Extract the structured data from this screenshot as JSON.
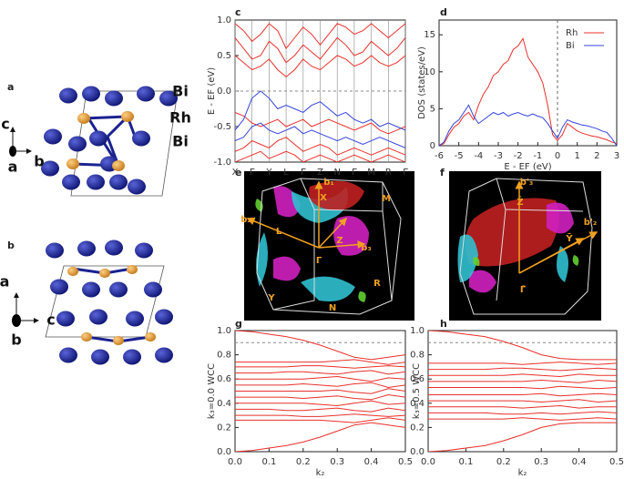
{
  "panel_labels": [
    "a",
    "b",
    "c",
    "d",
    "e",
    "f",
    "g",
    "h"
  ],
  "structures": [
    {
      "labels": [
        "Bi",
        "Rh",
        "Bi"
      ],
      "axes": [
        "c",
        "a",
        "b"
      ]
    },
    {
      "labels": [],
      "axes": [
        "a",
        "b",
        "c"
      ]
    }
  ],
  "fermi_surfaces": [
    {
      "labels": [
        "b₁",
        "b₂",
        "b₃",
        "X",
        "M",
        "L",
        "Z",
        "Γ",
        "R",
        "Y",
        "N"
      ]
    },
    {
      "labels": [
        "b'₃",
        "Z̄",
        "b'₂",
        "Ȳ",
        "Γ̄"
      ]
    }
  ],
  "chart_data": [
    {
      "type": "line",
      "y_label": "E - EF (eV)",
      "x": [
        0,
        0.5,
        1,
        1.5,
        2,
        2.5,
        3,
        3.5,
        4,
        4.5,
        5,
        5.5,
        6,
        6.5,
        7,
        7.5,
        8,
        8.5,
        9,
        9.5,
        10
      ],
      "xlim": [
        0,
        10
      ],
      "xticks": [
        {
          "value": 0,
          "label": "X"
        },
        {
          "value": 1,
          "label": "Γ"
        },
        {
          "value": 2,
          "label": "Y"
        },
        {
          "value": 3,
          "label": "L"
        },
        {
          "value": 4,
          "label": "Γ"
        },
        {
          "value": 5,
          "label": "Z"
        },
        {
          "value": 6,
          "label": "N"
        },
        {
          "value": 7,
          "label": "Γ"
        },
        {
          "value": 8,
          "label": "M"
        },
        {
          "value": 9,
          "label": "R"
        },
        {
          "value": 10,
          "label": "Γ"
        }
      ],
      "xgrid": true,
      "ylim": [
        -1.0,
        1.0
      ],
      "yticks": [
        {
          "value": -1,
          "label": "-1.0"
        },
        {
          "value": -0.5,
          "label": "-0.5"
        },
        {
          "value": 0,
          "label": "0.0"
        },
        {
          "value": 0.5,
          "label": "0.5"
        },
        {
          "value": 1,
          "label": "1.0"
        }
      ],
      "reference_y": [
        0
      ],
      "series": [
        {
          "color": "#e8302a",
          "values": [
            0.95,
            0.85,
            0.7,
            0.8,
            0.95,
            0.85,
            0.6,
            0.75,
            0.9,
            0.8,
            0.65,
            0.8,
            0.95,
            0.9,
            0.8,
            0.85,
            0.95,
            0.85,
            0.75,
            0.85,
            0.95
          ]
        },
        {
          "color": "#e8302a",
          "values": [
            0.75,
            0.6,
            0.45,
            0.5,
            0.7,
            0.6,
            0.4,
            0.5,
            0.65,
            0.55,
            0.45,
            0.6,
            0.75,
            0.65,
            0.5,
            0.55,
            0.7,
            0.6,
            0.5,
            0.6,
            0.75
          ]
        },
        {
          "color": "#e8302a",
          "values": [
            0.5,
            0.4,
            0.3,
            0.35,
            0.45,
            0.3,
            0.2,
            0.3,
            0.45,
            0.35,
            0.3,
            0.4,
            0.5,
            0.45,
            0.35,
            0.4,
            0.5,
            0.4,
            0.35,
            0.4,
            0.5
          ]
        },
        {
          "color": "#e8302a",
          "values": [
            -0.3,
            -0.35,
            -0.45,
            -0.5,
            -0.45,
            -0.4,
            -0.5,
            -0.45,
            -0.4,
            -0.5,
            -0.45,
            -0.4,
            -0.45,
            -0.5,
            -0.55,
            -0.5,
            -0.45,
            -0.55,
            -0.6,
            -0.55,
            -0.5
          ]
        },
        {
          "color": "#e8302a",
          "values": [
            -0.85,
            -0.8,
            -0.7,
            -0.75,
            -0.8,
            -0.7,
            -0.65,
            -0.75,
            -0.85,
            -0.8,
            -0.75,
            -0.8,
            -0.9,
            -0.85,
            -0.8,
            -0.85,
            -0.9,
            -0.85,
            -0.8,
            -0.85,
            -0.9
          ]
        },
        {
          "color": "#e8302a",
          "values": [
            -1.0,
            -0.95,
            -0.9,
            -0.85,
            -0.95,
            -0.9,
            -0.85,
            -0.9,
            -1.0,
            -0.95,
            -0.9,
            -0.95,
            -1.0,
            -0.95,
            -0.9,
            -0.95,
            -1.0,
            -0.95,
            -0.9,
            -0.95,
            -1.0
          ]
        },
        {
          "color": "#3344dd",
          "values": [
            -0.55,
            -0.4,
            -0.1,
            0.0,
            -0.1,
            -0.25,
            -0.2,
            -0.25,
            -0.3,
            -0.2,
            -0.15,
            -0.25,
            -0.35,
            -0.3,
            -0.4,
            -0.45,
            -0.4,
            -0.5,
            -0.45,
            -0.5,
            -0.55
          ]
        },
        {
          "color": "#3344dd",
          "values": [
            -0.7,
            -0.65,
            -0.5,
            -0.45,
            -0.55,
            -0.6,
            -0.55,
            -0.5,
            -0.6,
            -0.55,
            -0.6,
            -0.65,
            -0.7,
            -0.65,
            -0.7,
            -0.75,
            -0.7,
            -0.65,
            -0.7,
            -0.75,
            -0.8
          ]
        }
      ]
    },
    {
      "type": "line",
      "x_label": "E - EF (eV)",
      "y_label": "DOS (states/eV)",
      "legend": "top-right",
      "x": [
        -6,
        -5.75,
        -5.5,
        -5.25,
        -5,
        -4.75,
        -4.5,
        -4.25,
        -4,
        -3.75,
        -3.5,
        -3.25,
        -3,
        -2.75,
        -2.5,
        -2.25,
        -2,
        -1.75,
        -1.5,
        -1.25,
        -1,
        -0.75,
        -0.5,
        -0.25,
        0,
        0.25,
        0.5,
        0.75,
        1,
        1.25,
        1.5,
        1.75,
        2,
        2.25,
        2.5,
        2.75,
        3
      ],
      "xlim": [
        -6,
        3
      ],
      "xticks": [
        -6,
        -5,
        -4,
        -3,
        -2,
        -1,
        0,
        1,
        2,
        3
      ],
      "ylim": [
        0,
        17
      ],
      "yticks": [
        0,
        5,
        10,
        15
      ],
      "reference_x": [
        0
      ],
      "series": [
        {
          "name": "Rh",
          "color": "#e8302a",
          "values": [
            0,
            0.3,
            1.5,
            2.5,
            3,
            4,
            4.5,
            3.5,
            5.5,
            7,
            8,
            9.5,
            10,
            11,
            11.5,
            13,
            13.5,
            14.5,
            12,
            11,
            10,
            8.5,
            5.5,
            1.5,
            0.7,
            1.5,
            3,
            2.5,
            2,
            1.7,
            1.5,
            1.3,
            1.2,
            1,
            0.8,
            0.5,
            0.3
          ]
        },
        {
          "name": "Bi",
          "color": "#3344dd",
          "values": [
            0,
            0.5,
            2,
            3,
            3.5,
            4.5,
            5.5,
            4,
            3,
            3.5,
            4,
            4.5,
            4.2,
            4.5,
            4,
            4.3,
            4.5,
            4.2,
            4,
            4.3,
            4,
            3.8,
            3,
            2,
            1,
            2.5,
            3.5,
            3.2,
            3,
            2.8,
            2.7,
            2.5,
            2.3,
            2,
            1.8,
            1,
            0
          ]
        }
      ]
    },
    {
      "type": "line",
      "x_label": "k₂",
      "y_label": "k₃=0.0 WCC",
      "color": "#e8302a",
      "x": [
        0,
        0.05,
        0.1,
        0.15,
        0.2,
        0.25,
        0.3,
        0.35,
        0.4,
        0.45,
        0.5
      ],
      "xlim": [
        0,
        0.5
      ],
      "xticks": [
        {
          "value": 0,
          "label": "0.0"
        },
        0.1,
        0.2,
        0.3,
        0.4,
        0.5
      ],
      "ylim": [
        0,
        1
      ],
      "yticks": [
        {
          "value": 0,
          "label": "0.0"
        },
        0.2,
        0.4,
        0.6,
        0.8,
        {
          "value": 1,
          "label": "1.0"
        }
      ],
      "reference_y": [
        0.9
      ],
      "series": [
        {
          "values": [
            1.0,
            0.99,
            0.97,
            0.95,
            0.92,
            0.88,
            0.83,
            0.78,
            0.76,
            0.78,
            0.8
          ]
        },
        {
          "values": [
            0.74,
            0.74,
            0.74,
            0.74,
            0.74,
            0.74,
            0.75,
            0.76,
            0.74,
            0.72,
            0.74
          ]
        },
        {
          "values": [
            0.7,
            0.7,
            0.7,
            0.7,
            0.71,
            0.71,
            0.7,
            0.69,
            0.7,
            0.71,
            0.7
          ]
        },
        {
          "values": [
            0.65,
            0.65,
            0.65,
            0.66,
            0.66,
            0.65,
            0.64,
            0.66,
            0.67,
            0.64,
            0.66
          ]
        },
        {
          "values": [
            0.6,
            0.6,
            0.6,
            0.6,
            0.6,
            0.61,
            0.62,
            0.6,
            0.58,
            0.61,
            0.6
          ]
        },
        {
          "values": [
            0.55,
            0.55,
            0.55,
            0.55,
            0.56,
            0.55,
            0.54,
            0.56,
            0.57,
            0.53,
            0.55
          ]
        },
        {
          "values": [
            0.5,
            0.5,
            0.5,
            0.5,
            0.5,
            0.5,
            0.51,
            0.49,
            0.48,
            0.52,
            0.5
          ]
        },
        {
          "values": [
            0.45,
            0.45,
            0.45,
            0.45,
            0.44,
            0.45,
            0.46,
            0.44,
            0.43,
            0.47,
            0.45
          ]
        },
        {
          "values": [
            0.4,
            0.4,
            0.4,
            0.4,
            0.4,
            0.39,
            0.38,
            0.4,
            0.42,
            0.39,
            0.4
          ]
        },
        {
          "values": [
            0.35,
            0.35,
            0.35,
            0.34,
            0.34,
            0.35,
            0.36,
            0.34,
            0.33,
            0.36,
            0.34
          ]
        },
        {
          "values": [
            0.3,
            0.3,
            0.3,
            0.3,
            0.29,
            0.29,
            0.3,
            0.31,
            0.3,
            0.29,
            0.3
          ]
        },
        {
          "values": [
            0.26,
            0.26,
            0.26,
            0.26,
            0.26,
            0.26,
            0.25,
            0.24,
            0.26,
            0.28,
            0.26
          ]
        },
        {
          "values": [
            0.0,
            0.01,
            0.03,
            0.05,
            0.08,
            0.12,
            0.17,
            0.22,
            0.24,
            0.22,
            0.2
          ]
        }
      ]
    },
    {
      "type": "line",
      "x_label": "k₂",
      "y_label": "k₃=0.5 WCC",
      "color": "#e8302a",
      "x": [
        0,
        0.05,
        0.1,
        0.15,
        0.2,
        0.25,
        0.3,
        0.35,
        0.4,
        0.45,
        0.5
      ],
      "xlim": [
        0,
        0.5
      ],
      "xticks": [
        {
          "value": 0,
          "label": "0.0"
        },
        0.1,
        0.2,
        0.3,
        0.4,
        0.5
      ],
      "ylim": [
        0,
        1
      ],
      "yticks": [
        {
          "value": 0,
          "label": "0.0"
        },
        0.2,
        0.4,
        0.6,
        0.8,
        {
          "value": 1,
          "label": "1.0"
        }
      ],
      "reference_y": [
        0.9
      ],
      "series": [
        {
          "values": [
            1.0,
            0.99,
            0.97,
            0.95,
            0.91,
            0.86,
            0.8,
            0.77,
            0.76,
            0.76,
            0.76
          ]
        },
        {
          "values": [
            0.73,
            0.73,
            0.73,
            0.73,
            0.73,
            0.72,
            0.73,
            0.74,
            0.73,
            0.72,
            0.73
          ]
        },
        {
          "values": [
            0.68,
            0.68,
            0.68,
            0.68,
            0.69,
            0.69,
            0.68,
            0.67,
            0.68,
            0.69,
            0.68
          ]
        },
        {
          "values": [
            0.63,
            0.63,
            0.63,
            0.63,
            0.63,
            0.64,
            0.63,
            0.62,
            0.64,
            0.63,
            0.63
          ]
        },
        {
          "values": [
            0.58,
            0.58,
            0.58,
            0.58,
            0.58,
            0.58,
            0.59,
            0.58,
            0.57,
            0.59,
            0.58
          ]
        },
        {
          "values": [
            0.53,
            0.53,
            0.53,
            0.53,
            0.53,
            0.53,
            0.52,
            0.54,
            0.53,
            0.52,
            0.53
          ]
        },
        {
          "values": [
            0.47,
            0.47,
            0.47,
            0.47,
            0.47,
            0.47,
            0.48,
            0.46,
            0.47,
            0.48,
            0.47
          ]
        },
        {
          "values": [
            0.42,
            0.42,
            0.42,
            0.42,
            0.42,
            0.42,
            0.41,
            0.42,
            0.43,
            0.41,
            0.42
          ]
        },
        {
          "values": [
            0.37,
            0.37,
            0.37,
            0.37,
            0.37,
            0.36,
            0.37,
            0.38,
            0.36,
            0.37,
            0.37
          ]
        },
        {
          "values": [
            0.32,
            0.32,
            0.32,
            0.32,
            0.31,
            0.31,
            0.32,
            0.31,
            0.32,
            0.33,
            0.32
          ]
        },
        {
          "values": [
            0.27,
            0.27,
            0.27,
            0.27,
            0.27,
            0.28,
            0.27,
            0.26,
            0.27,
            0.28,
            0.27
          ]
        },
        {
          "values": [
            0.0,
            0.01,
            0.03,
            0.05,
            0.09,
            0.14,
            0.2,
            0.23,
            0.24,
            0.24,
            0.24
          ]
        }
      ]
    }
  ]
}
